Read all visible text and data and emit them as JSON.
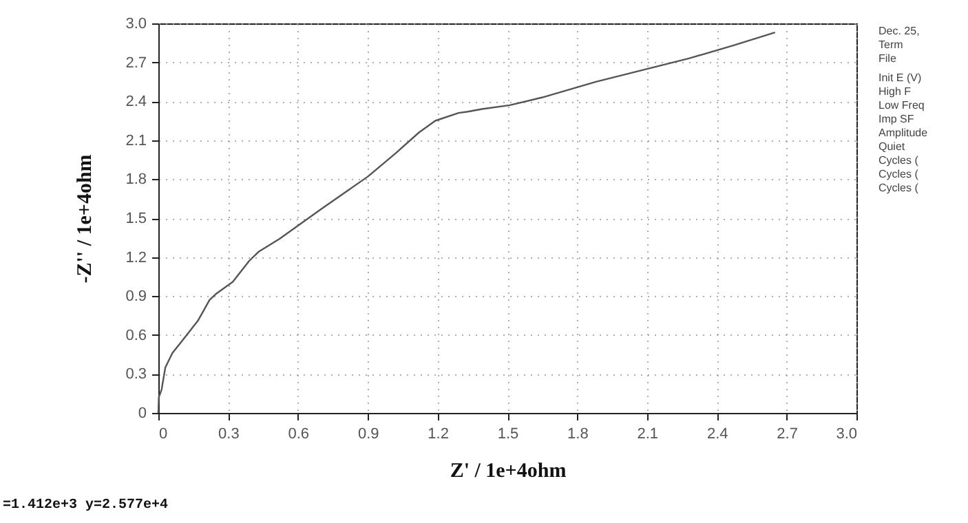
{
  "chart_data": {
    "type": "line",
    "xlabel": "Z' / 1e+4ohm",
    "ylabel": "-Z'' / 1e+4ohm",
    "x": [
      0,
      0.002,
      0.014,
      0.03,
      0.06,
      0.1,
      0.17,
      0.22,
      0.25,
      0.32,
      0.39,
      0.43,
      0.52,
      0.7,
      0.9,
      1.02,
      1.12,
      1.19,
      1.29,
      1.33,
      1.39,
      1.51,
      1.65,
      1.88,
      2.08,
      2.28,
      2.47,
      2.65
    ],
    "series": [
      {
        "color": "#555555",
        "values": [
          0,
          0.12,
          0.18,
          0.35,
          0.46,
          0.55,
          0.71,
          0.87,
          0.92,
          1.01,
          1.17,
          1.24,
          1.34,
          1.57,
          1.82,
          2.0,
          2.16,
          2.25,
          2.31,
          2.32,
          2.34,
          2.37,
          2.43,
          2.55,
          2.64,
          2.73,
          2.83,
          2.93
        ]
      }
    ],
    "xlim": [
      0,
      3
    ],
    "ylim": [
      0,
      3
    ],
    "xticks": [
      0,
      0.3,
      0.6,
      0.9,
      1.2,
      1.5,
      1.8,
      2.1,
      2.4,
      2.7,
      {
        "value": 3,
        "label": "3.0"
      }
    ],
    "yticks": [
      0,
      0.3,
      0.6,
      0.9,
      1.2,
      1.5,
      1.8,
      2.1,
      2.4,
      2.7,
      {
        "value": 3,
        "label": "3.0"
      }
    ],
    "grid": true,
    "marker": "none",
    "line_style": "solid",
    "annotations": [
      "Dec. 25,",
      "Term",
      "File",
      "Init E (V)",
      "High F",
      "Low Freq",
      "Imp SF",
      "Amplitude",
      "Quiet",
      "Cycles (",
      "Cycles (",
      "Cycles (",
      "=1.412e+3   y=2.577e+4"
    ]
  }
}
